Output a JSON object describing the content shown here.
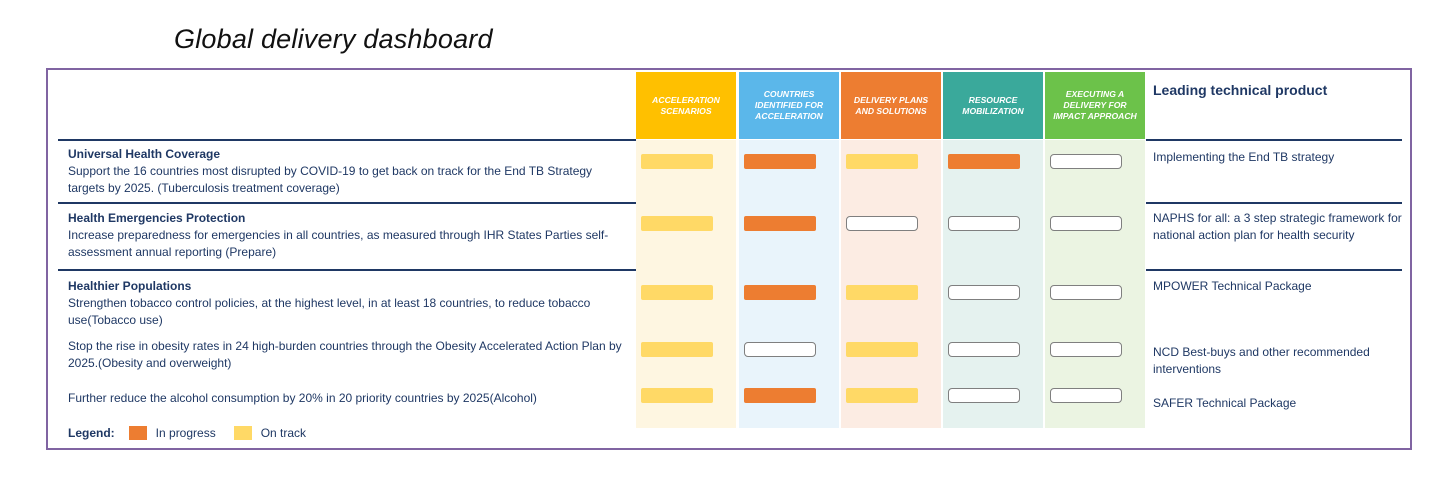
{
  "page": {
    "title": "Global delivery dashboard"
  },
  "columns": [
    {
      "label": "ACCELERATION SCENARIOS",
      "color": "#ffc000",
      "tint": "#fef6e1"
    },
    {
      "label": "COUNTRIES IDENTIFIED FOR ACCELERATION",
      "color": "#5bb7ea",
      "tint": "#e9f4fb"
    },
    {
      "label": "DELIVERY PLANS AND SOLUTIONS",
      "color": "#ed7d31",
      "tint": "#fcece3"
    },
    {
      "label": "RESOURCE MOBILIZATION",
      "color": "#3aa99b",
      "tint": "#e5f2ef"
    },
    {
      "label": "EXECUTING A DELIVERY FOR IMPACT APPROACH",
      "color": "#6cc24a",
      "tint": "#ebf4e2"
    }
  ],
  "lead_header": "Leading technical product",
  "legend": {
    "title": "Legend:",
    "in_progress": "In progress",
    "on_track": "On track",
    "in_progress_color": "#ed7d31",
    "on_track_color": "#ffd966"
  },
  "chart_data": {
    "type": "table",
    "status_legend": {
      "P": "In progress",
      "T": "On track",
      "": "Not started"
    },
    "rows": [
      {
        "heading": "Universal Health Coverage",
        "text": "Support the 16 countries most disrupted by COVID-19 to get back on track for the End TB Strategy targets by 2025. (Tuberculosis treatment coverage)",
        "status": [
          "T",
          "P",
          "T",
          "P",
          ""
        ],
        "lead": "Implementing the End TB strategy"
      },
      {
        "heading": "Health Emergencies Protection",
        "text": "Increase preparedness for emergencies in all countries, as measured through IHR States Parties self-assessment annual reporting (Prepare)",
        "status": [
          "T",
          "P",
          "",
          "",
          ""
        ],
        "lead": "NAPHS for all: a 3 step strategic framework for national action plan for health security"
      },
      {
        "heading": "Healthier Populations",
        "text": "Strengthen tobacco control policies, at the highest level, in at least 18 countries, to reduce tobacco use(Tobacco use)",
        "status": [
          "T",
          "P",
          "T",
          "",
          ""
        ],
        "lead": "MPOWER Technical Package"
      },
      {
        "heading": "",
        "text": "Stop the rise in obesity rates in 24 high-burden countries through the Obesity Accelerated Action Plan by 2025.(Obesity and overweight)",
        "status": [
          "T",
          "",
          "T",
          "",
          ""
        ],
        "lead": "NCD Best-buys and other recommended interventions"
      },
      {
        "heading": "",
        "text": "Further reduce the alcohol consumption by 20% in 20 priority countries by 2025(Alcohol)",
        "status": [
          "T",
          "P",
          "T",
          "",
          ""
        ],
        "lead": "SAFER Technical Package"
      }
    ]
  }
}
